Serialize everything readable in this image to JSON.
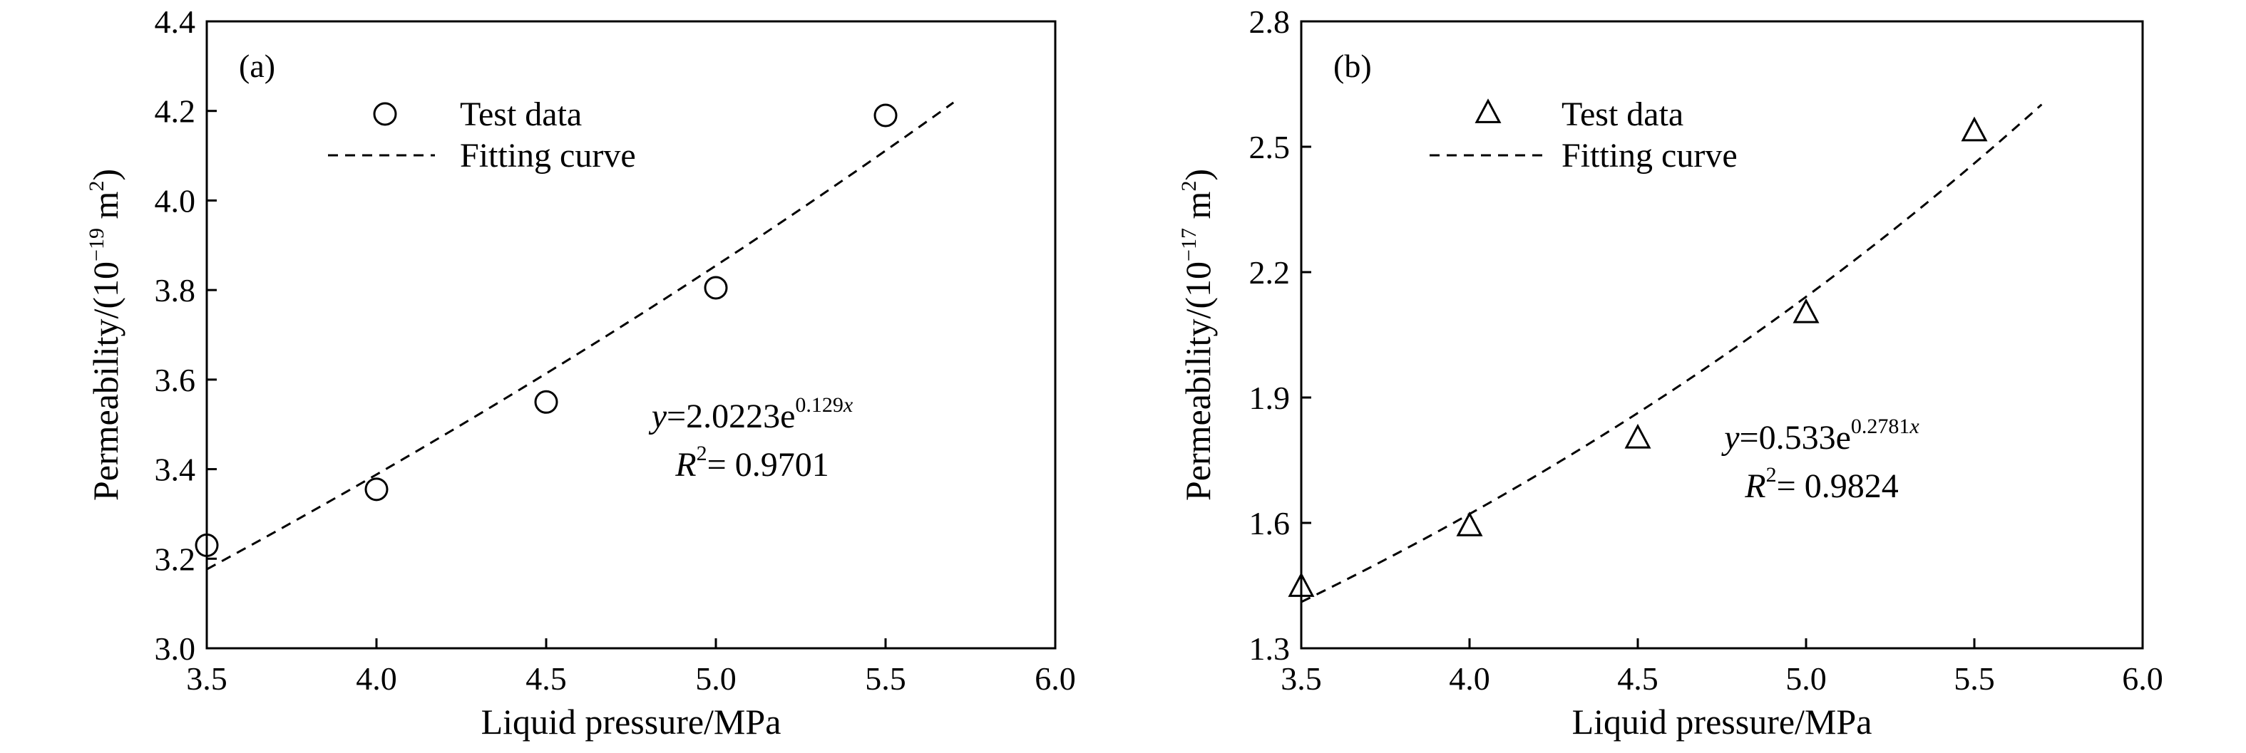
{
  "chart_data": [
    {
      "type": "scatter",
      "panel_label": "(a)",
      "xlabel": "Liquid pressure/MPa",
      "ylabel": {
        "prefix": "Permeability/(10",
        "exp": "−19",
        "suffix": " m",
        "unit_exp": "2",
        "close": ")"
      },
      "xlim": [
        3.5,
        6.0
      ],
      "ylim": [
        3.0,
        4.4
      ],
      "x_ticks": [
        "3.5",
        "4.0",
        "4.5",
        "5.0",
        "5.5",
        "6.0"
      ],
      "y_ticks": [
        "3.0",
        "3.2",
        "3.4",
        "3.6",
        "3.8",
        "4.0",
        "4.2",
        "4.4"
      ],
      "legend": {
        "placement": "top-left",
        "test_data": "Test data",
        "fitting_curve": "Fitting curve"
      },
      "marker": "circle",
      "series": [
        {
          "name": "Test data",
          "x": [
            3.5,
            4.0,
            4.5,
            5.0,
            5.5
          ],
          "y": [
            3.23,
            3.355,
            3.55,
            3.805,
            4.19
          ]
        }
      ],
      "fit": {
        "name": "Fitting curve",
        "a": 2.0223,
        "b": 0.129,
        "x_range": [
          3.5,
          5.7
        ]
      },
      "equation": {
        "y": "y",
        "eq": "=2.0223e",
        "exp_coef": "0.129",
        "exp_var": "x",
        "r": "R",
        "r_exp": "2",
        "r_val": "= 0.9701"
      },
      "grid": false
    },
    {
      "type": "scatter",
      "panel_label": "(b)",
      "xlabel": "Liquid pressure/MPa",
      "ylabel": {
        "prefix": "Permeability/(10",
        "exp": "−17",
        "suffix": " m",
        "unit_exp": "2",
        "close": ")"
      },
      "xlim": [
        3.5,
        6.0
      ],
      "ylim": [
        1.3,
        2.8
      ],
      "x_ticks": [
        "3.5",
        "4.0",
        "4.5",
        "5.0",
        "5.5",
        "6.0"
      ],
      "y_ticks": [
        "1.3",
        "1.6",
        "1.9",
        "2.2",
        "2.5",
        "2.8"
      ],
      "legend": {
        "placement": "top-left",
        "test_data": "Test data",
        "fitting_curve": "Fitting curve"
      },
      "marker": "triangle",
      "series": [
        {
          "name": "Test data",
          "x": [
            3.5,
            4.0,
            4.5,
            5.0,
            5.5
          ],
          "y": [
            1.445,
            1.59,
            1.8,
            2.1,
            2.535
          ]
        }
      ],
      "fit": {
        "name": "Fitting curve",
        "a": 0.533,
        "b": 0.2781,
        "x_range": [
          3.5,
          5.7
        ]
      },
      "equation": {
        "y": "y",
        "eq": "=0.533e",
        "exp_coef": "0.2781",
        "exp_var": "x",
        "r": "R",
        "r_exp": "2",
        "r_val": "= 0.9824"
      },
      "grid": false
    }
  ]
}
